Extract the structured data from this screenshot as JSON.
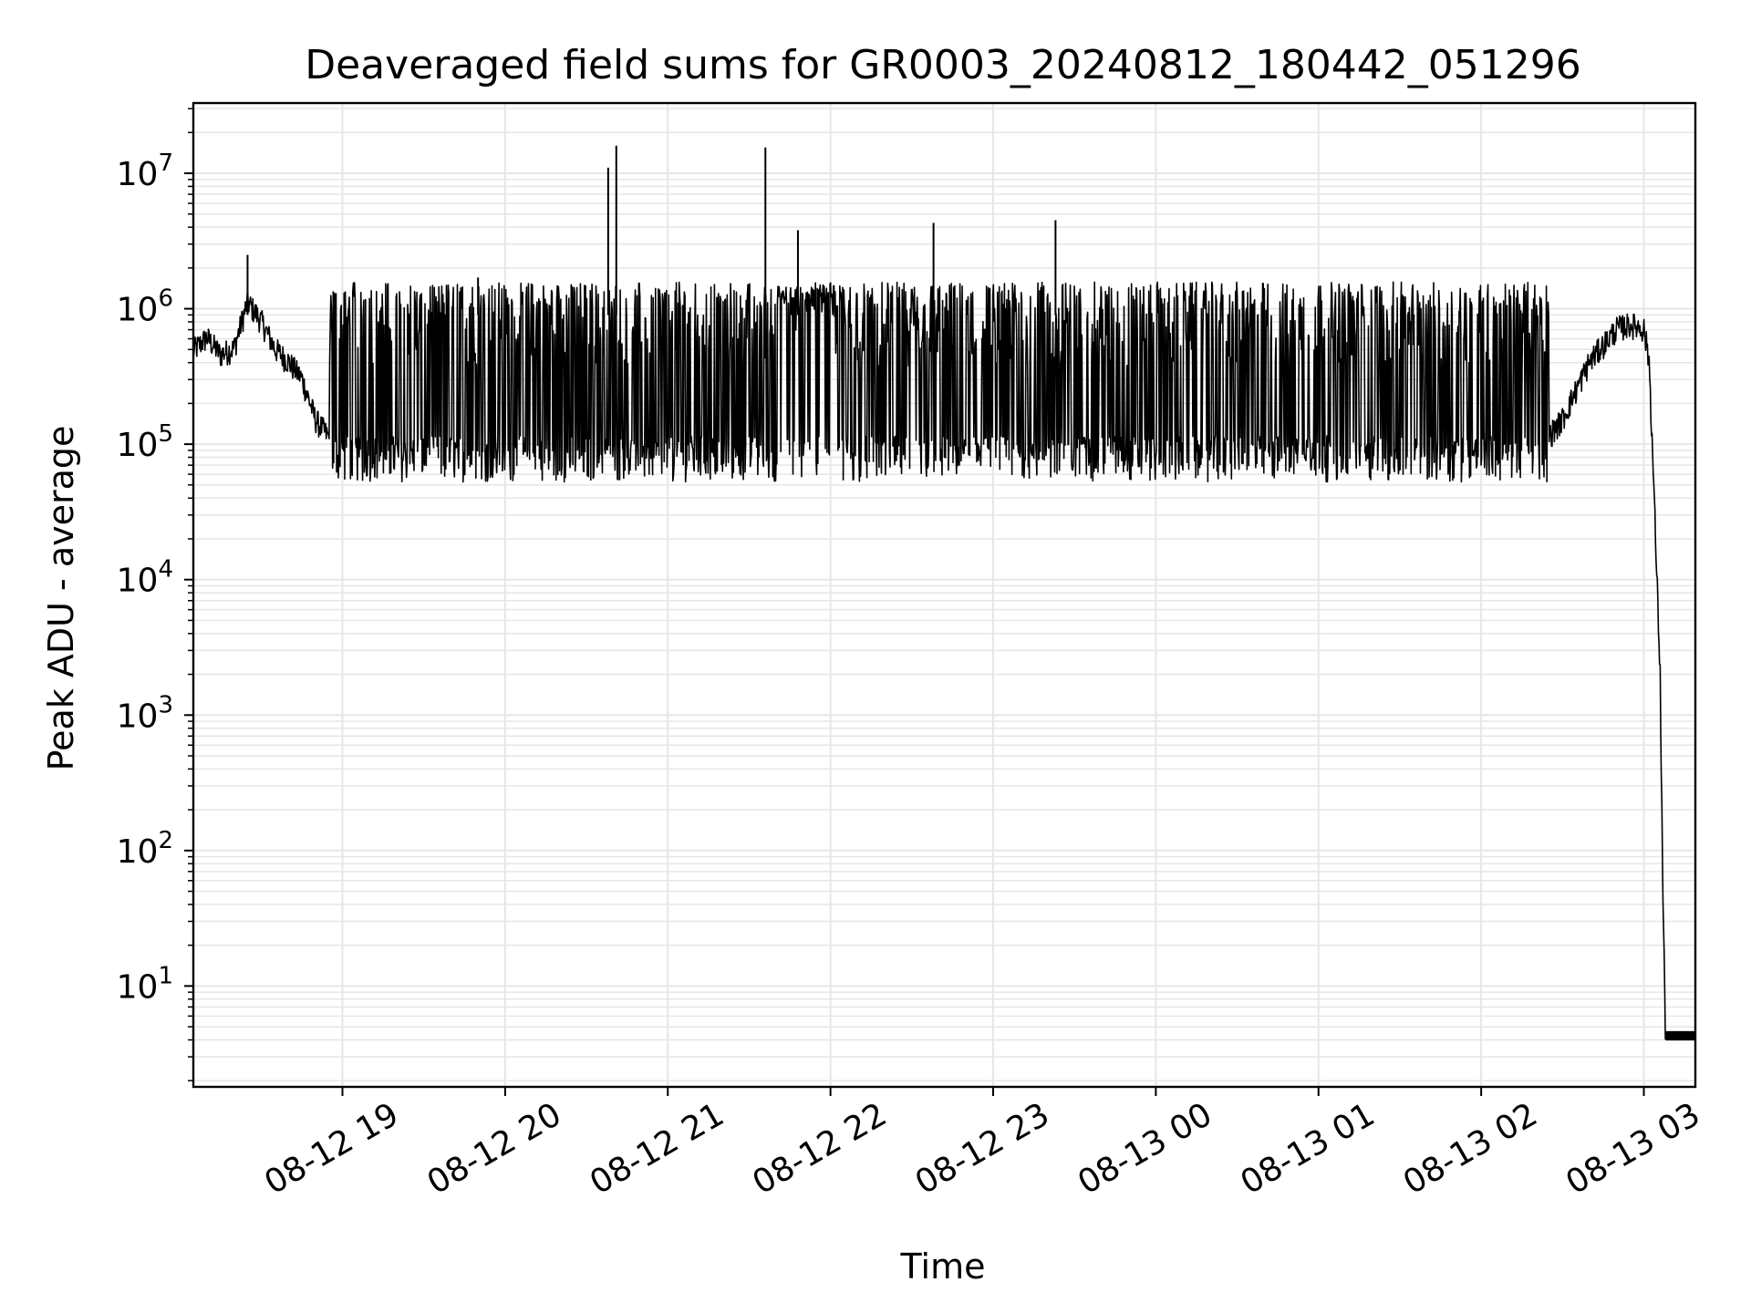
{
  "chart_data": {
    "type": "line",
    "title": "Deaveraged field sums for GR0003_20240812_180442_051296",
    "xlabel": "Time",
    "ylabel": "Peak ADU - average",
    "yscale": "log",
    "ylim": [
      1.8,
      33000000
    ],
    "xlim": [
      "2024-08-12 18:05",
      "2024-08-13 03:19"
    ],
    "grid": true,
    "line_color": "#000000",
    "grid_color": "#e6e6e6",
    "x_ticks": [
      {
        "value": "2024-08-12 19:00",
        "label": "08-12 19"
      },
      {
        "value": "2024-08-12 20:00",
        "label": "08-12 20"
      },
      {
        "value": "2024-08-12 21:00",
        "label": "08-12 21"
      },
      {
        "value": "2024-08-12 22:00",
        "label": "08-12 22"
      },
      {
        "value": "2024-08-12 23:00",
        "label": "08-12 23"
      },
      {
        "value": "2024-08-13 00:00",
        "label": "08-13 00"
      },
      {
        "value": "2024-08-13 01:00",
        "label": "08-13 01"
      },
      {
        "value": "2024-08-13 02:00",
        "label": "08-13 02"
      },
      {
        "value": "2024-08-13 03:00",
        "label": "08-13 03"
      }
    ],
    "y_ticks": [
      {
        "value": 10,
        "base": "10",
        "exp": "1"
      },
      {
        "value": 100,
        "base": "10",
        "exp": "2"
      },
      {
        "value": 1000,
        "base": "10",
        "exp": "3"
      },
      {
        "value": 10000,
        "base": "10",
        "exp": "4"
      },
      {
        "value": 100000,
        "base": "10",
        "exp": "5"
      },
      {
        "value": 1000000,
        "base": "10",
        "exp": "6"
      },
      {
        "value": 10000000,
        "base": "10",
        "exp": "7"
      }
    ],
    "series": [
      {
        "x": [
          "2024-08-12 18:05",
          "2024-08-12 18:10",
          "2024-08-12 18:15",
          "2024-08-12 18:20",
          "2024-08-12 18:25",
          "2024-08-12 18:30",
          "2024-08-12 18:35",
          "2024-08-12 18:40",
          "2024-08-12 18:45",
          "2024-08-12 18:50",
          "2024-08-12 18:55",
          "2024-08-12 19:00",
          "2024-08-12 19:10",
          "2024-08-12 19:20",
          "2024-08-12 19:30",
          "2024-08-12 19:40",
          "2024-08-12 19:50",
          "2024-08-12 20:00",
          "2024-08-12 20:15",
          "2024-08-12 20:30",
          "2024-08-12 20:45",
          "2024-08-12 21:00",
          "2024-08-12 21:15",
          "2024-08-12 21:30",
          "2024-08-12 21:45",
          "2024-08-12 22:00",
          "2024-08-12 22:15",
          "2024-08-12 22:30",
          "2024-08-12 22:45",
          "2024-08-12 23:00",
          "2024-08-12 23:15",
          "2024-08-12 23:30",
          "2024-08-12 23:45",
          "2024-08-13 00:00",
          "2024-08-13 00:15",
          "2024-08-13 00:30",
          "2024-08-13 00:45",
          "2024-08-13 01:00",
          "2024-08-13 01:15",
          "2024-08-13 01:30",
          "2024-08-13 01:45",
          "2024-08-13 02:00",
          "2024-08-13 02:10",
          "2024-08-13 02:20",
          "2024-08-13 02:30",
          "2024-08-13 02:40",
          "2024-08-13 02:50",
          "2024-08-13 02:55",
          "2024-08-13 03:00",
          "2024-08-13 03:02",
          "2024-08-13 03:04",
          "2024-08-13 03:06",
          "2024-08-13 03:07",
          "2024-08-13 03:08",
          "2024-08-13 03:19"
        ],
        "y": [
          480000,
          600000,
          450000,
          500000,
          1100000,
          800000,
          500000,
          400000,
          300000,
          150000,
          110000,
          100000,
          95000,
          100000,
          95000,
          90000,
          90000,
          95000,
          90000,
          95000,
          100000,
          95000,
          90000,
          90000,
          150000,
          1300000,
          500000,
          200000,
          100000,
          100000,
          90000,
          80000,
          75000,
          90000,
          100000,
          100000,
          100000,
          90000,
          90000,
          85000,
          80000,
          80000,
          80000,
          85000,
          150000,
          400000,
          700000,
          750000,
          700000,
          400000,
          30000,
          2000,
          50,
          4,
          4
        ]
      }
    ],
    "spikes": {
      "x": [
        "2024-08-12 18:25",
        "2024-08-12 19:50",
        "2024-08-12 20:38",
        "2024-08-12 20:41",
        "2024-08-12 21:36",
        "2024-08-12 21:48",
        "2024-08-12 22:38",
        "2024-08-12 23:23"
      ],
      "y": [
        2500000,
        1700000,
        11000000,
        16000000,
        15500000,
        3800000,
        4300000,
        4500000
      ]
    },
    "band": {
      "x_start": "2024-08-12 18:55",
      "x_end": "2024-08-13 02:25",
      "low": 70000,
      "high": 1500000
    }
  }
}
